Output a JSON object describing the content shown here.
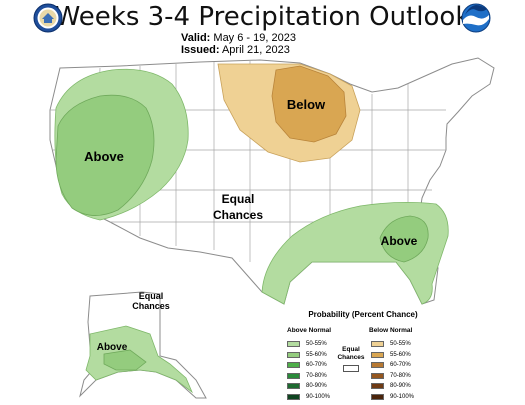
{
  "header": {
    "title": "Weeks 3-4 Precipitation Outlook",
    "valid_label": "Valid:",
    "valid_value": "May 6 - 19, 2023",
    "issued_label": "Issued:",
    "issued_value": "April 21, 2023"
  },
  "logos": {
    "left": "us-department-of-commerce-seal",
    "right": "noaa-logo"
  },
  "map": {
    "labels": {
      "west_above": "Above",
      "midwest_below": "Below",
      "center_equal_line1": "Equal",
      "center_equal_line2": "Chances",
      "southeast_above": "Above",
      "alaska_equal_line1": "Equal",
      "alaska_equal_line2": "Chances",
      "alaska_above": "Above"
    },
    "colors": {
      "land": "#ffffff",
      "border": "#8c8c8c",
      "above_50_55": "#b3dca0",
      "above_55_60": "#94cc7e",
      "below_50_55": "#efd194",
      "below_55_60": "#d9a652"
    }
  },
  "legend": {
    "title": "Probability (Percent Chance)",
    "above_heading": "Above Normal",
    "below_heading": "Below Normal",
    "equal_line1": "Equal",
    "equal_line2": "Chances",
    "above_items": [
      {
        "label": "50-55%",
        "color": "#b3dca0"
      },
      {
        "label": "55-60%",
        "color": "#94cc7e"
      },
      {
        "label": "60-70%",
        "color": "#4fae4a"
      },
      {
        "label": "70-80%",
        "color": "#2a8a3a"
      },
      {
        "label": "80-90%",
        "color": "#1e6a30"
      },
      {
        "label": "90-100%",
        "color": "#0f4420"
      }
    ],
    "below_items": [
      {
        "label": "50-55%",
        "color": "#efd194"
      },
      {
        "label": "55-60%",
        "color": "#d9a652"
      },
      {
        "label": "60-70%",
        "color": "#b77933"
      },
      {
        "label": "70-80%",
        "color": "#94561f"
      },
      {
        "label": "80-90%",
        "color": "#6e3a14"
      },
      {
        "label": "90-100%",
        "color": "#4a240b"
      }
    ]
  }
}
